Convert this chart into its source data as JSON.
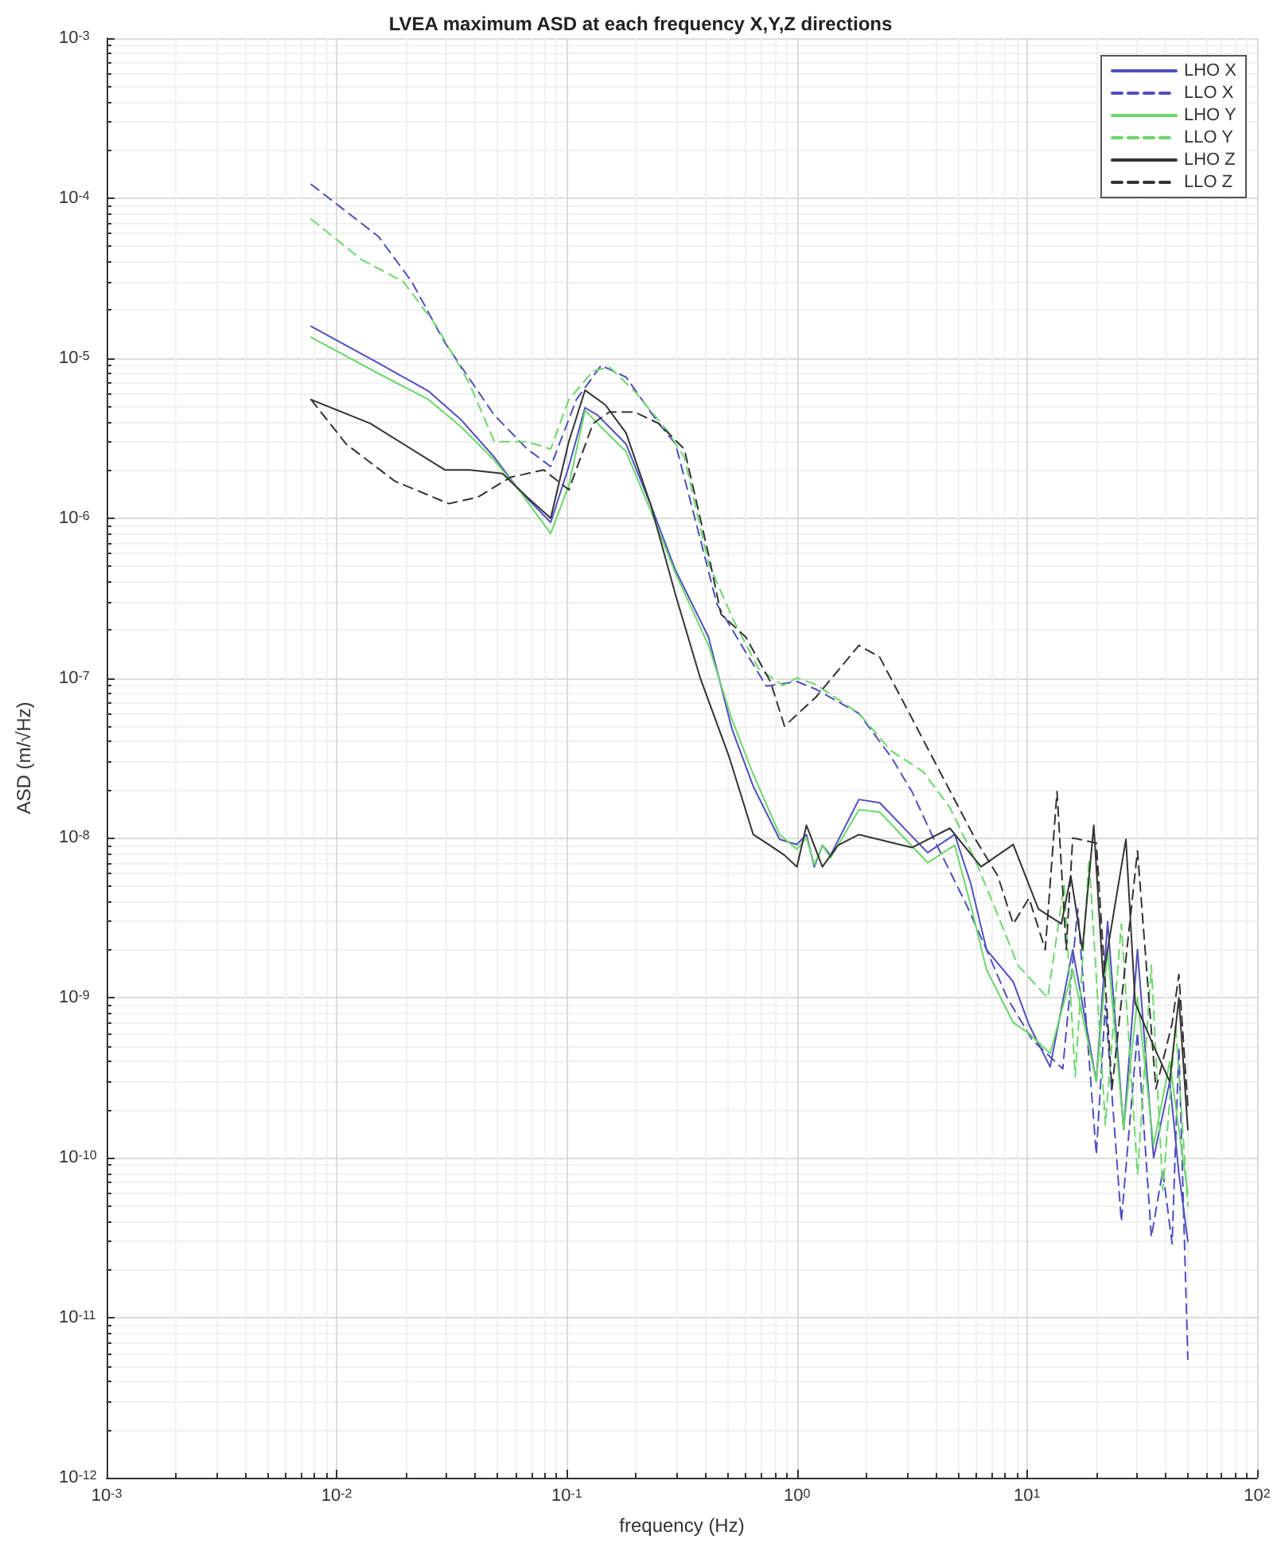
{
  "chart_data": {
    "type": "line",
    "title": "LVEA maximum ASD at each frequency X,Y,Z directions",
    "xlabel": "frequency (Hz)",
    "ylabel": "ASD (m/√Hz)",
    "log": "xy",
    "grid": true,
    "legend": "top right",
    "marker": "none",
    "xlim": [
      0.001,
      100
    ],
    "ylim": [
      1e-12,
      0.001
    ],
    "xticks": [
      {
        "value": 0.001,
        "label": "10$^{-3}$"
      },
      {
        "value": 0.01,
        "label": "10$^{-2}$"
      },
      {
        "value": 0.1,
        "label": "10$^{-1}$"
      },
      {
        "value": 1,
        "label": "10$^{0}$"
      },
      {
        "value": 10,
        "label": "10$^{1}$"
      },
      {
        "value": 100,
        "label": "10$^{2}$"
      }
    ],
    "yticks": [
      {
        "value": 1e-12,
        "label": "10$^{-12}$"
      },
      {
        "value": 1e-11,
        "label": "10$^{-11}$"
      },
      {
        "value": 1e-10,
        "label": "10$^{-10}$"
      },
      {
        "value": 1e-09,
        "label": "10$^{-9}$"
      },
      {
        "value": 1e-08,
        "label": "10$^{-8}$"
      },
      {
        "value": 1e-07,
        "label": "10$^{-7}$"
      },
      {
        "value": 1e-06,
        "label": "10$^{-6}$"
      },
      {
        "value": 1e-05,
        "label": "10$^{-5}$"
      },
      {
        "value": 0.0001,
        "label": "10$^{-4}$"
      },
      {
        "value": 0.001,
        "label": "10$^{-3}$"
      }
    ],
    "series": [
      {
        "name": "LHO X",
        "color": "#4f4fbf",
        "line_style": "solid",
        "x": [
          0.00774,
          0.0152,
          0.0251,
          0.0348,
          0.0484,
          0.0619,
          0.0851,
          0.102,
          0.12,
          0.136,
          0.181,
          0.232,
          0.297,
          0.413,
          0.522,
          0.646,
          0.841,
          1,
          1.1,
          1.19,
          1.29,
          1.4,
          1.86,
          2.29,
          3.7,
          4.85,
          5.69,
          6.67,
          8.71,
          10.2,
          12.6,
          15.8,
          20,
          22.4,
          26.3,
          30.2,
          35.5,
          41.7,
          45.7,
          50
        ],
        "values": [
          1.58e-05,
          9.3e-06,
          6.2e-06,
          4.1e-06,
          2.4e-06,
          1.5e-06,
          9.4e-07,
          2.1e-06,
          4.9e-06,
          4.4e-06,
          2.9e-06,
          1.2e-06,
          4.7e-07,
          1.8e-07,
          4.8e-08,
          2.1e-08,
          9.8e-09,
          9.1e-09,
          1.05e-08,
          6.6e-09,
          9e-09,
          7.8e-09,
          1.74e-08,
          1.66e-08,
          8.1e-09,
          1.05e-08,
          5.2e-09,
          2e-09,
          1.26e-09,
          6.8e-10,
          3.7e-10,
          2e-09,
          3e-10,
          3e-09,
          1.5e-10,
          2e-09,
          1e-10,
          3e-10,
          8e-11,
          3e-11
        ]
      },
      {
        "name": "LLO X",
        "color": "#4f4fbf",
        "line_style": "dashed",
        "x": [
          0.00774,
          0.0152,
          0.0212,
          0.0295,
          0.0484,
          0.0673,
          0.0851,
          0.11,
          0.141,
          0.181,
          0.251,
          0.297,
          0.38,
          0.449,
          0.575,
          0.736,
          1,
          1.21,
          1.86,
          2.57,
          3.16,
          3.94,
          5.42,
          6.67,
          8.2,
          10.5,
          14.3,
          16.6,
          20,
          21.9,
          25.7,
          30.2,
          34.7,
          38.9,
          42.7,
          45.7,
          50
        ],
        "values": [
          0.000122,
          5.75e-05,
          3e-05,
          1.25e-05,
          4.4e-06,
          2.7e-06,
          2.1e-06,
          5.5e-06,
          9e-06,
          7.6e-06,
          3.9e-06,
          2.9e-06,
          7.4e-07,
          2.9e-07,
          1.6e-07,
          8.9e-08,
          9.5e-08,
          8.5e-08,
          6e-08,
          3.2e-08,
          1.95e-08,
          9.8e-09,
          3.9e-09,
          2e-09,
          1e-09,
          5.5e-10,
          3.6e-10,
          3.6e-09,
          1.05e-10,
          9e-10,
          4e-11,
          6.1e-10,
          3.2e-11,
          8.3e-11,
          2.9e-11,
          4.9e-10,
          5.5e-12
        ]
      },
      {
        "name": "LHO Y",
        "color": "#6cd86c",
        "line_style": "solid",
        "x": [
          0.00774,
          0.0152,
          0.0251,
          0.0348,
          0.0484,
          0.0619,
          0.0851,
          0.102,
          0.12,
          0.136,
          0.181,
          0.232,
          0.297,
          0.413,
          0.522,
          0.646,
          0.841,
          1,
          1.1,
          1.19,
          1.29,
          1.4,
          1.86,
          2.29,
          3.7,
          4.85,
          5.69,
          6.67,
          8.71,
          10.2,
          12.6,
          15.8,
          20,
          22.4,
          26.3,
          30.2,
          35.5,
          41.7,
          45.7,
          50
        ],
        "values": [
          1.35e-05,
          8e-06,
          5.5e-06,
          3.7e-06,
          2.3e-06,
          1.5e-06,
          8e-07,
          1.6e-06,
          4.7e-06,
          3.9e-06,
          2.6e-06,
          1.1e-06,
          4.5e-07,
          1.6e-07,
          5.5e-08,
          2.5e-08,
          1.05e-08,
          8.5e-09,
          1e-08,
          6.8e-09,
          9e-09,
          7.5e-09,
          1.5e-08,
          1.45e-08,
          7e-09,
          9e-09,
          3.8e-09,
          1.5e-09,
          7e-10,
          6e-10,
          4.5e-10,
          1.5e-09,
          3e-10,
          2e-09,
          1.5e-10,
          1e-09,
          1.2e-10,
          4e-10,
          1.5e-10,
          6e-11
        ]
      },
      {
        "name": "LLO Y",
        "color": "#6cd86c",
        "line_style": "dashed",
        "x": [
          0.00774,
          0.0129,
          0.0195,
          0.0272,
          0.0378,
          0.0484,
          0.0673,
          0.0851,
          0.102,
          0.13,
          0.153,
          0.197,
          0.274,
          0.324,
          0.413,
          0.53,
          0.679,
          0.869,
          1,
          1.21,
          1.86,
          2.57,
          3.53,
          4.62,
          5.97,
          7.46,
          9.12,
          12.3,
          14.5,
          16.2,
          18.6,
          21.9,
          25.7,
          30.2,
          34.7,
          38.9,
          44.2,
          50
        ],
        "values": [
          7.4e-05,
          4.1e-05,
          3e-05,
          1.58e-05,
          6.9e-06,
          3e-06,
          3e-06,
          2.7e-06,
          5.5e-06,
          8.3e-06,
          8.8e-06,
          6.2e-06,
          3.5e-06,
          2.4e-06,
          5.2e-07,
          2.3e-07,
          1.15e-07,
          9e-08,
          1e-07,
          9.1e-08,
          6e-08,
          3.5e-08,
          2.6e-08,
          1.55e-08,
          7.2e-09,
          3.3e-09,
          1.6e-09,
          1e-09,
          5.1e-09,
          3.2e-10,
          7.4e-09,
          1.6e-10,
          2.9e-09,
          7.9e-11,
          1.6e-09,
          6.3e-11,
          6.9e-10,
          5e-11
        ]
      },
      {
        "name": "LHO Z",
        "color": "#333333",
        "line_style": "solid",
        "x": [
          0.00774,
          0.014,
          0.0295,
          0.0378,
          0.0525,
          0.0673,
          0.0851,
          0.102,
          0.12,
          0.147,
          0.181,
          0.232,
          0.297,
          0.38,
          0.508,
          0.646,
          0.753,
          0.883,
          1,
          1.1,
          1.29,
          1.51,
          1.86,
          3.16,
          4.62,
          6.31,
          8.71,
          11.2,
          14.1,
          15.5,
          17.4,
          19.5,
          21.4,
          26.9,
          29.5,
          35.5,
          41.7,
          45.7,
          50
        ],
        "values": [
          5.5e-06,
          3.9e-06,
          2e-06,
          2e-06,
          1.9e-06,
          1.35e-06,
          1e-06,
          3e-06,
          6.3e-06,
          5.1e-06,
          3.4e-06,
          1.2e-06,
          3.3e-07,
          1e-07,
          3.2e-08,
          1.05e-08,
          9.1e-09,
          7.8e-09,
          6.6e-09,
          1.2e-08,
          6.6e-09,
          9e-09,
          1.05e-08,
          8.7e-09,
          1.15e-08,
          6.6e-09,
          9.1e-09,
          3.6e-09,
          2.9e-09,
          5.8e-09,
          2e-09,
          1.2e-08,
          1.35e-09,
          9.8e-09,
          9.3e-10,
          5e-10,
          3e-10,
          1e-09,
          1.5e-10
        ]
      },
      {
        "name": "LLO Z",
        "color": "#333333",
        "line_style": "dashed",
        "x": [
          0.00774,
          0.011,
          0.0179,
          0.0307,
          0.041,
          0.057,
          0.0794,
          0.102,
          0.13,
          0.153,
          0.197,
          0.251,
          0.324,
          0.413,
          0.468,
          0.6,
          0.767,
          0.883,
          1.21,
          1.86,
          2.29,
          3.16,
          4.37,
          5.97,
          7.46,
          8.71,
          10.2,
          12,
          13.5,
          14.8,
          15.8,
          20,
          23.4,
          30.2,
          36.3,
          42.7,
          45.7,
          50
        ],
        "values": [
          5.5e-06,
          2.9e-06,
          1.7e-06,
          1.23e-06,
          1.35e-06,
          1.8e-06,
          2e-06,
          1.5e-06,
          3.9e-06,
          4.6e-06,
          4.6e-06,
          3.9e-06,
          2.7e-06,
          5.9e-07,
          2.5e-07,
          1.8e-07,
          9.5e-08,
          5e-08,
          7.6e-08,
          1.6e-07,
          1.35e-07,
          5.6e-08,
          2.3e-08,
          9.8e-09,
          5.8e-09,
          2.9e-09,
          4.2e-09,
          2e-09,
          1.95e-08,
          2e-09,
          1e-08,
          9.3e-09,
          2.7e-10,
          8.3e-09,
          2.7e-10,
          6.9e-10,
          1.4e-09,
          2.1e-10
        ]
      }
    ]
  }
}
